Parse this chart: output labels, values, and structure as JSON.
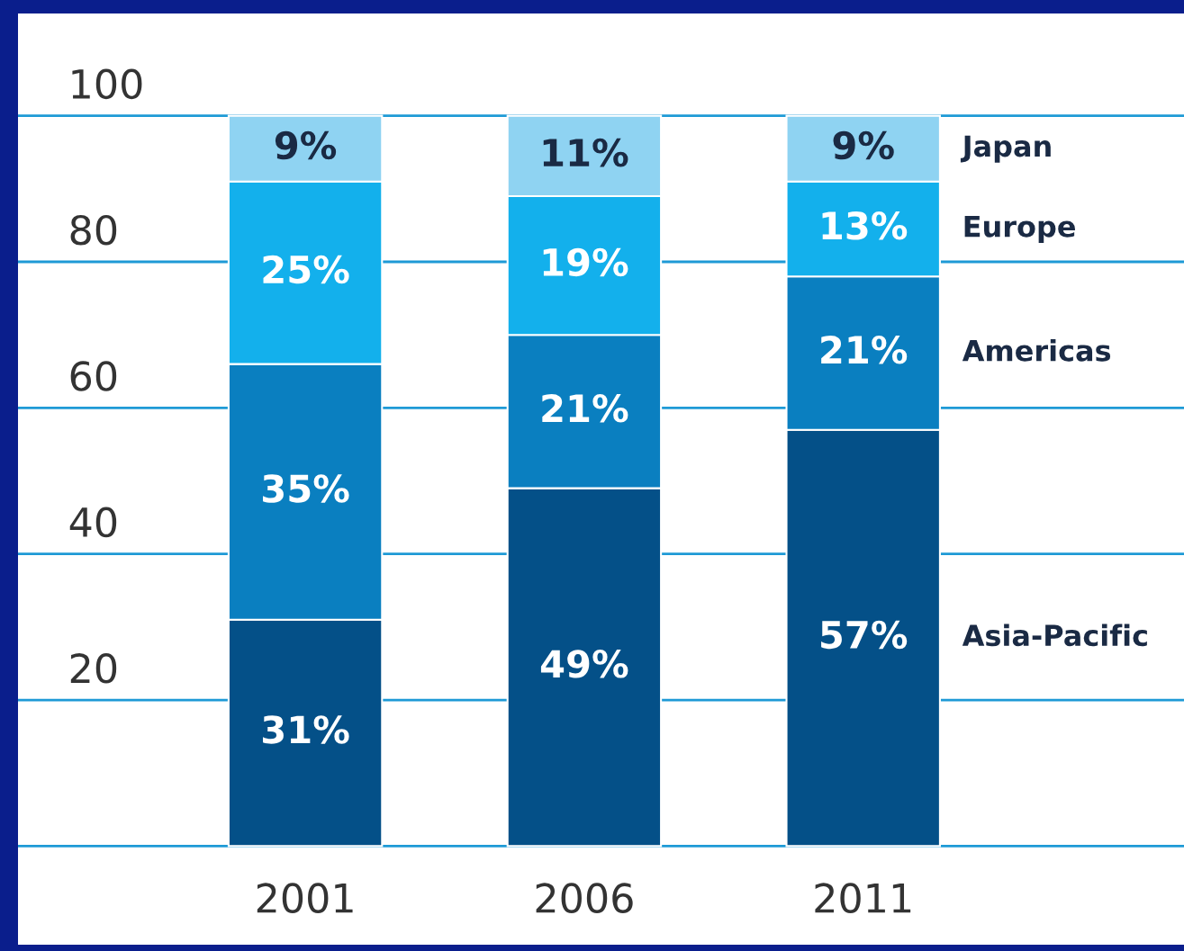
{
  "chart_data": {
    "type": "bar",
    "stacked": true,
    "categories": [
      "2001",
      "2006",
      "2011"
    ],
    "series": [
      {
        "name": "Asia-Pacific",
        "color": "#045088",
        "values": [
          31,
          49,
          57
        ],
        "value_labels": [
          "31%",
          "49%",
          "57%"
        ]
      },
      {
        "name": "Americas",
        "color": "#0a7fc0",
        "values": [
          35,
          21,
          21
        ],
        "value_labels": [
          "35%",
          "21%",
          "21%"
        ]
      },
      {
        "name": "Europe",
        "color": "#13b0ec",
        "values": [
          25,
          19,
          13
        ],
        "value_labels": [
          "25%",
          "19%",
          "13%"
        ]
      },
      {
        "name": "Japan",
        "color": "#8fd3f2",
        "values": [
          9,
          11,
          9
        ],
        "value_labels": [
          "9%",
          "11%",
          "9%"
        ]
      }
    ],
    "ylim": [
      -13.5,
      114
    ],
    "yticks": [
      {
        "value": 0,
        "label": null
      },
      20,
      40,
      60,
      80,
      100
    ],
    "grid": "y",
    "legend": "right"
  }
}
